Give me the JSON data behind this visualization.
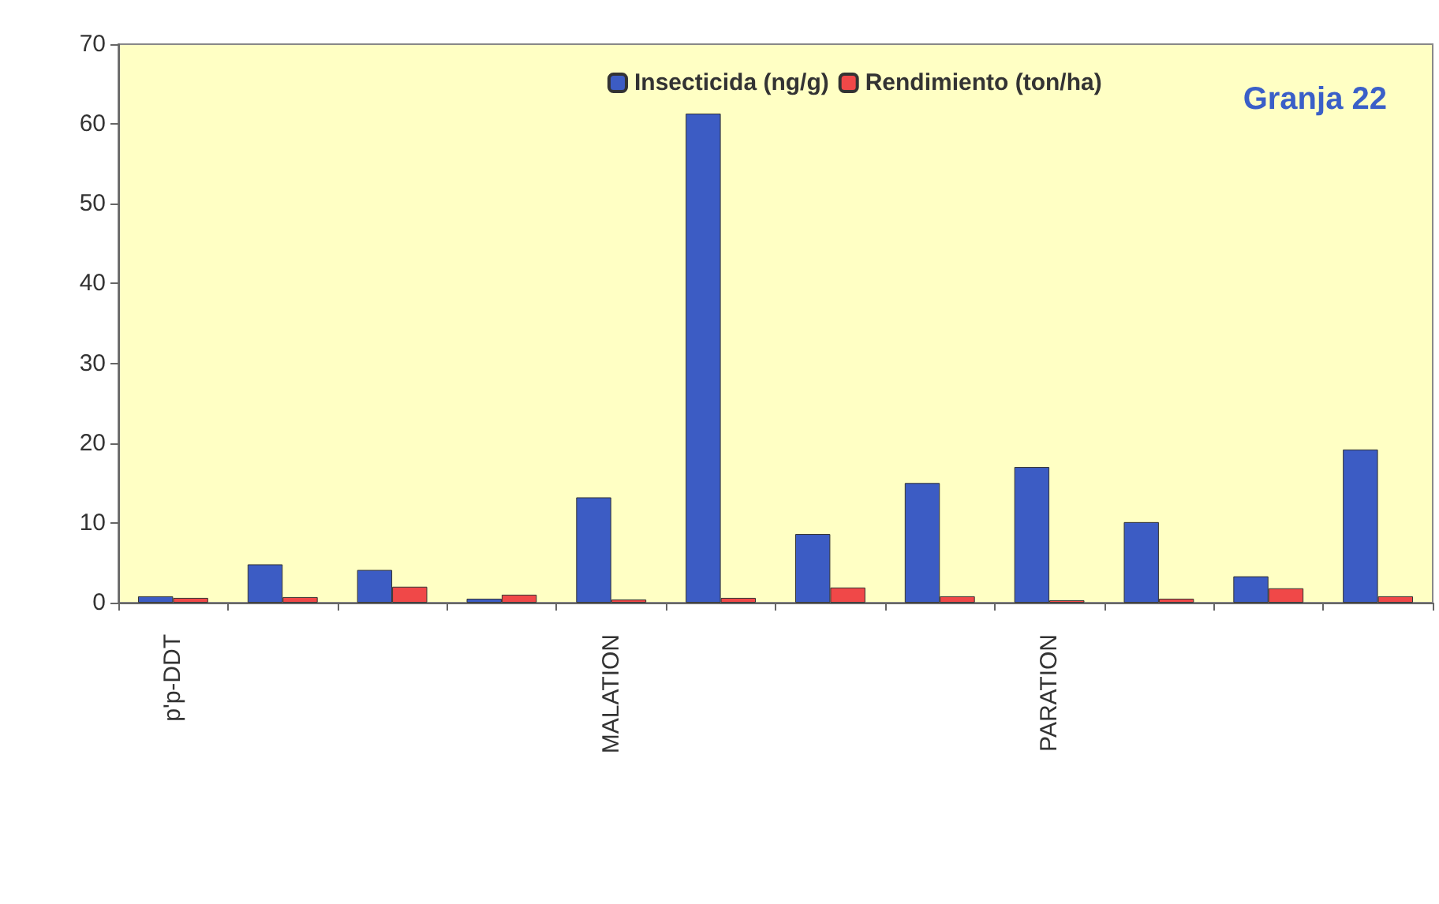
{
  "chart_data": {
    "type": "bar",
    "title": "Granja 22",
    "categories": [
      "p'p-DDT",
      null,
      null,
      null,
      "MALATION",
      null,
      null,
      null,
      "PARATION",
      null,
      null,
      null
    ],
    "series": [
      {
        "name": "Insecticida (ng/g)",
        "color": "#3c5cc4",
        "values": [
          0.8,
          4.8,
          4.1,
          0.5,
          13.2,
          61.3,
          8.6,
          15,
          17,
          10.1,
          3.3,
          19.2
        ]
      },
      {
        "name": "Rendimiento (ton/ha)",
        "color": "#f04848",
        "values": [
          0.6,
          0.7,
          2,
          1,
          0.4,
          0.6,
          1.9,
          0.8,
          0.3,
          0.5,
          1.8,
          0.8
        ]
      }
    ],
    "ylim": [
      0,
      70
    ],
    "yticks": [
      0,
      10,
      20,
      30,
      40,
      50,
      60,
      70
    ],
    "grid": false,
    "legend": "top"
  }
}
